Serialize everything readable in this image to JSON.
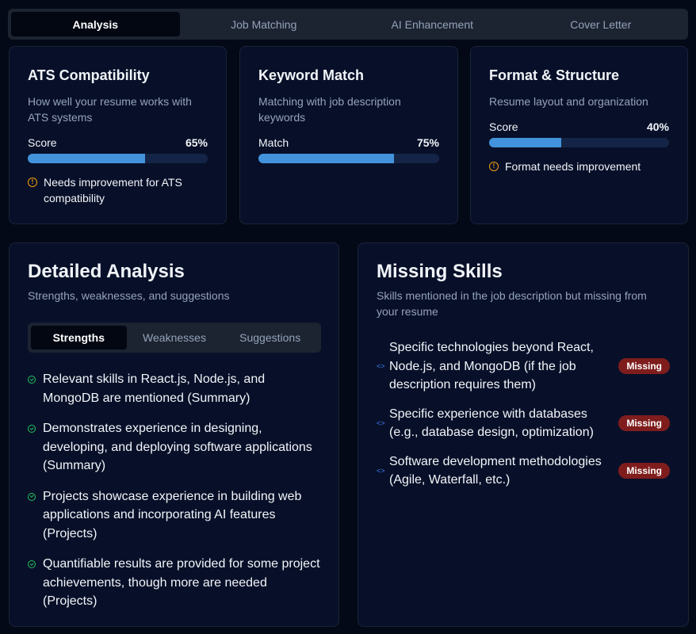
{
  "tabs": [
    "Analysis",
    "Job Matching",
    "AI Enhancement",
    "Cover Letter"
  ],
  "active_tab": "Analysis",
  "scores": [
    {
      "title": "ATS Compatibility",
      "desc": "How well your resume works with ATS systems",
      "label": "Score",
      "value": 65,
      "value_text": "65%",
      "warning": "Needs improvement for ATS compatibility"
    },
    {
      "title": "Keyword Match",
      "desc": "Matching with job description keywords",
      "label": "Match",
      "value": 75,
      "value_text": "75%"
    },
    {
      "title": "Format & Structure",
      "desc": "Resume layout and organization",
      "label": "Score",
      "value": 40,
      "value_text": "40%",
      "warning": "Format needs improvement"
    }
  ],
  "detailed": {
    "title": "Detailed Analysis",
    "subtitle": "Strengths, weaknesses, and suggestions",
    "tabs": [
      "Strengths",
      "Weaknesses",
      "Suggestions"
    ],
    "active_tab": "Strengths",
    "items": [
      "Relevant skills in React.js, Node.js, and MongoDB are mentioned (Summary)",
      "Demonstrates experience in designing, developing, and deploying software applications (Summary)",
      "Projects showcase experience in building web applications and incorporating AI features (Projects)",
      "Quantifiable results are provided for some project achievements, though more are needed (Projects)"
    ]
  },
  "missing": {
    "title": "Missing Skills",
    "subtitle": "Skills mentioned in the job description but missing from your resume",
    "badge": "Missing",
    "items": [
      "Specific technologies beyond React, Node.js, and MongoDB (if the job description requires them)",
      "Specific experience with databases (e.g., database design, optimization)",
      "Software development methodologies (Agile, Waterfall, etc.)"
    ]
  },
  "colors": {
    "progress": "#4393dc",
    "warning": "#f59e0b",
    "success": "#22c55e",
    "badge": "#7f1d1d"
  }
}
